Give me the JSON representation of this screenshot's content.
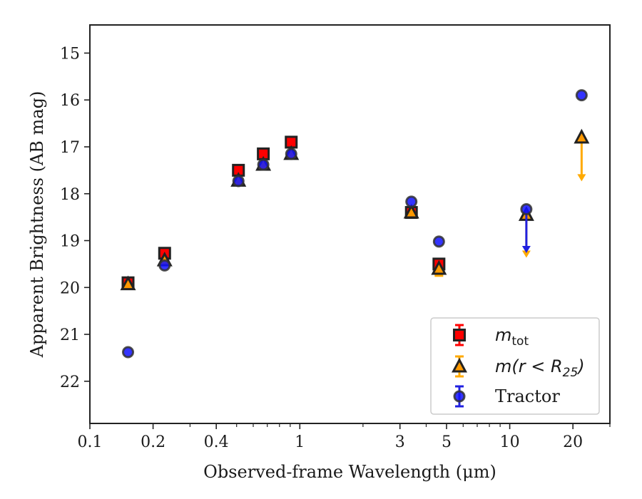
{
  "chart_data": {
    "type": "scatter",
    "xlabel": "Observed-frame Wavelength (μm)",
    "ylabel": "Apparent Brightness (AB mag)",
    "xscale": "log",
    "xlim": [
      0.1,
      30
    ],
    "ylim": [
      22.9,
      14.4
    ],
    "y_inverted": true,
    "grid": false,
    "legend_position": "lower-right",
    "x_ticks": [
      {
        "value": 0.1,
        "label": "0.1"
      },
      {
        "value": 0.2,
        "label": "0.2"
      },
      {
        "value": 0.4,
        "label": "0.4"
      },
      {
        "value": 1,
        "label": "1"
      },
      {
        "value": 3,
        "label": "3"
      },
      {
        "value": 5,
        "label": "5"
      },
      {
        "value": 10,
        "label": "10"
      },
      {
        "value": 20,
        "label": "20"
      }
    ],
    "y_ticks": [
      15,
      16,
      17,
      18,
      19,
      20,
      21,
      22
    ],
    "series": [
      {
        "name": "m_tot",
        "legend": {
          "base": "m",
          "sub": "tot"
        },
        "marker": "square",
        "color": "#ff0000",
        "edgecolor": "#222222",
        "errcolor": "#ff0000",
        "points": [
          {
            "x": 0.152,
            "y": 19.9
          },
          {
            "x": 0.227,
            "y": 19.27
          },
          {
            "x": 0.51,
            "y": 17.5
          },
          {
            "x": 0.67,
            "y": 17.15
          },
          {
            "x": 0.91,
            "y": 16.9
          },
          {
            "x": 3.4,
            "y": 18.4
          },
          {
            "x": 4.6,
            "y": 19.5
          }
        ]
      },
      {
        "name": "m(r < R25)",
        "legend": {
          "base": "m(r < R",
          "sub": "25",
          "tail": ")"
        },
        "marker": "triangle",
        "color": "#ff9900",
        "edgecolor": "#222222",
        "errcolor": "#ffaa00",
        "points": [
          {
            "x": 0.152,
            "y": 19.93
          },
          {
            "x": 0.227,
            "y": 19.42
          },
          {
            "x": 0.51,
            "y": 17.72
          },
          {
            "x": 0.67,
            "y": 17.38
          },
          {
            "x": 0.91,
            "y": 17.15
          },
          {
            "x": 3.4,
            "y": 18.4
          },
          {
            "x": 4.6,
            "y": 19.6,
            "err": 0.15
          },
          {
            "x": 12.0,
            "y": 18.45,
            "upper_limit_to": 19.35
          },
          {
            "x": 22.0,
            "y": 16.8,
            "upper_limit_to": 17.72
          }
        ]
      },
      {
        "name": "Tractor",
        "legend": {
          "base": "Tractor"
        },
        "marker": "circle",
        "color": "#1010ff",
        "edgecolor": "#333333",
        "errcolor": "#2020e0",
        "points": [
          {
            "x": 0.152,
            "y": 21.38
          },
          {
            "x": 0.227,
            "y": 19.53
          },
          {
            "x": 0.51,
            "y": 17.73
          },
          {
            "x": 0.67,
            "y": 17.38
          },
          {
            "x": 0.91,
            "y": 17.15
          },
          {
            "x": 3.4,
            "y": 18.17
          },
          {
            "x": 4.6,
            "y": 19.02
          },
          {
            "x": 12.0,
            "y": 18.33,
            "upper_limit_to": 19.25
          },
          {
            "x": 22.0,
            "y": 15.9
          }
        ]
      }
    ]
  }
}
